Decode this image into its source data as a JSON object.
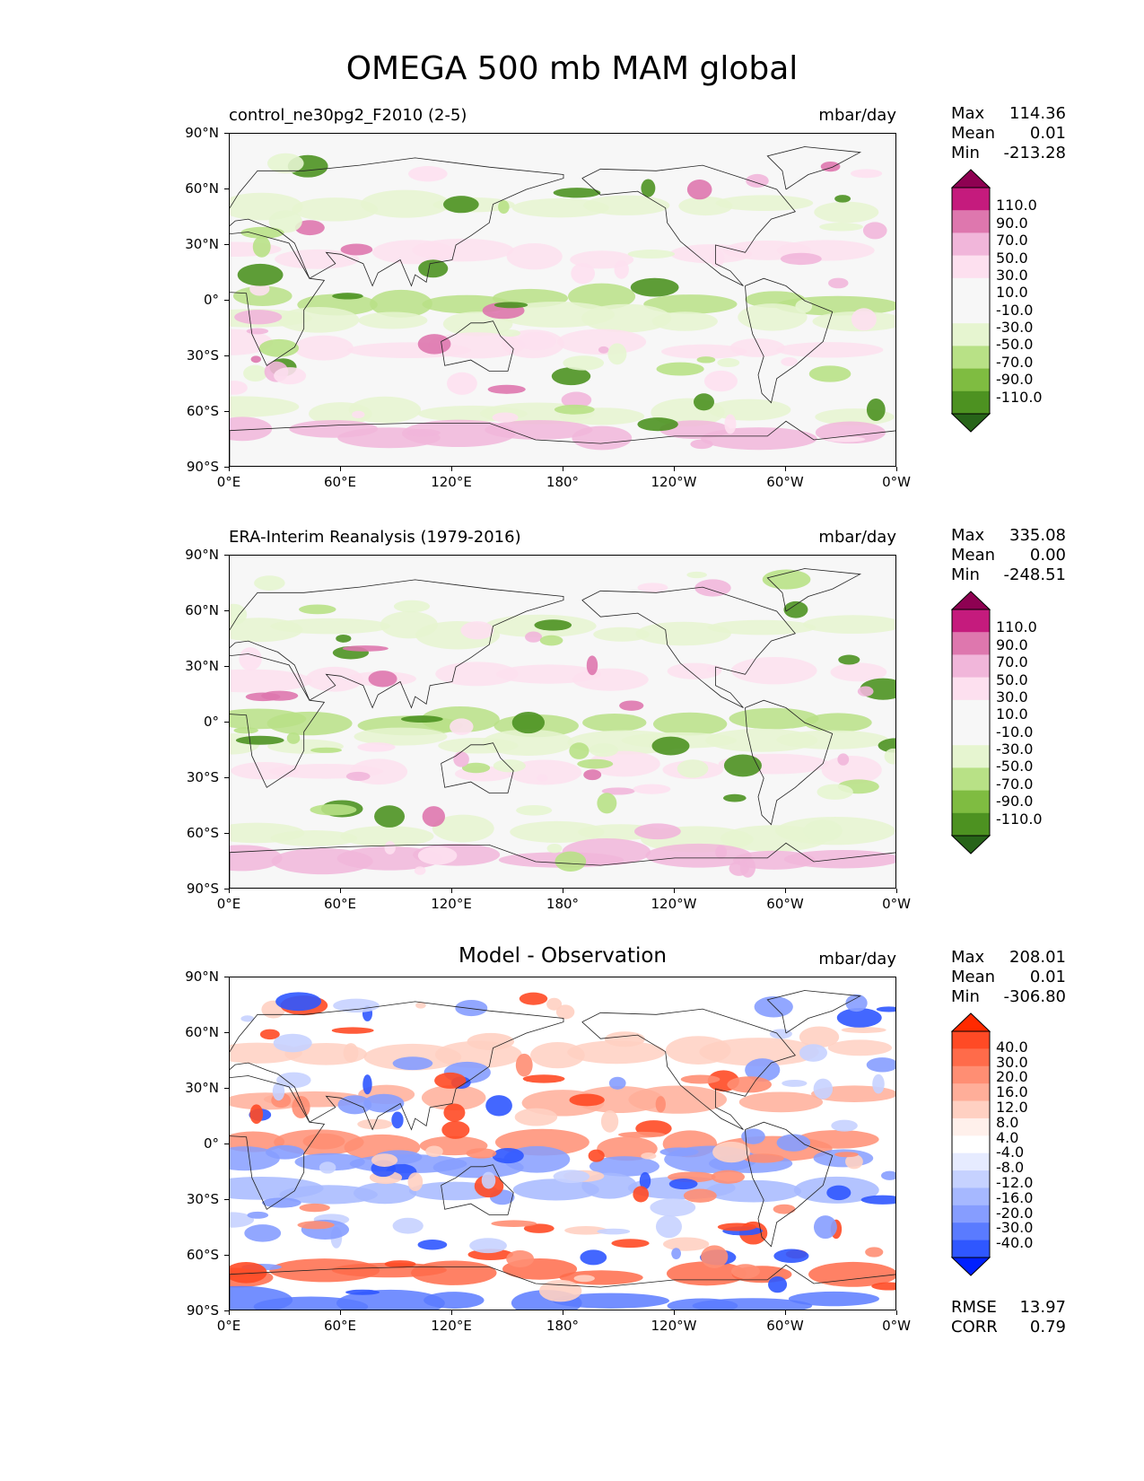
{
  "title": "OMEGA 500 mb MAM global",
  "lat_ticks": [
    "90°N",
    "60°N",
    "30°N",
    "0°",
    "30°S",
    "60°S",
    "90°S"
  ],
  "lon_ticks": [
    "0°E",
    "60°E",
    "120°E",
    "180°",
    "120°W",
    "60°W",
    "0°W"
  ],
  "panels": [
    {
      "name": "model",
      "title_left": "control_ne30pg2_F2010 (2-5)",
      "title_center": "",
      "units": "mbar/day",
      "stats": {
        "max_label": "Max",
        "max": "114.36",
        "mean_label": "Mean",
        "mean": "0.01",
        "min_label": "Min",
        "min": "-213.28"
      },
      "colorbar": {
        "levels": [
          "110.0",
          "90.0",
          "70.0",
          "50.0",
          "30.0",
          "10.0",
          "-10.0",
          "-30.0",
          "-50.0",
          "-70.0",
          "-90.0",
          "-110.0"
        ],
        "colors": [
          "#8e0152",
          "#c51b7d",
          "#de77ae",
          "#f1b6da",
          "#fde0ef",
          "#f7f7f7",
          "#f7f7f7",
          "#e6f5d0",
          "#b8e186",
          "#7fbc41",
          "#4d9221",
          "#276419"
        ]
      }
    },
    {
      "name": "obs",
      "title_left": "ERA-Interim Reanalysis (1979-2016)",
      "title_center": "",
      "units": "mbar/day",
      "stats": {
        "max_label": "Max",
        "max": "335.08",
        "mean_label": "Mean",
        "mean": "0.00",
        "min_label": "Min",
        "min": "-248.51"
      },
      "colorbar": {
        "levels": [
          "110.0",
          "90.0",
          "70.0",
          "50.0",
          "30.0",
          "10.0",
          "-10.0",
          "-30.0",
          "-50.0",
          "-70.0",
          "-90.0",
          "-110.0"
        ],
        "colors": [
          "#8e0152",
          "#c51b7d",
          "#de77ae",
          "#f1b6da",
          "#fde0ef",
          "#f7f7f7",
          "#f7f7f7",
          "#e6f5d0",
          "#b8e186",
          "#7fbc41",
          "#4d9221",
          "#276419"
        ]
      }
    },
    {
      "name": "diff",
      "title_left": "",
      "title_center": "Model - Observation",
      "units": "mbar/day",
      "stats": {
        "max_label": "Max",
        "max": "208.01",
        "mean_label": "Mean",
        "mean": "0.01",
        "min_label": "Min",
        "min": "-306.80"
      },
      "colorbar": {
        "levels": [
          "40.0",
          "30.0",
          "20.0",
          "16.0",
          "12.0",
          "8.0",
          "4.0",
          "-4.0",
          "-8.0",
          "-12.0",
          "-16.0",
          "-20.0",
          "-30.0",
          "-40.0"
        ],
        "colors": [
          "#ff2a00",
          "#ff4a25",
          "#ff6b4a",
          "#ff8e73",
          "#ffae99",
          "#ffd0c2",
          "#fff0eb",
          "#ffffff",
          "#e6ebff",
          "#c6d2ff",
          "#a6b8ff",
          "#869dff",
          "#5a7bff",
          "#2f57ff",
          "#0020ff"
        ]
      },
      "rmse_label": "RMSE",
      "rmse": "13.97",
      "corr_label": "CORR",
      "corr": "0.79"
    }
  ]
}
